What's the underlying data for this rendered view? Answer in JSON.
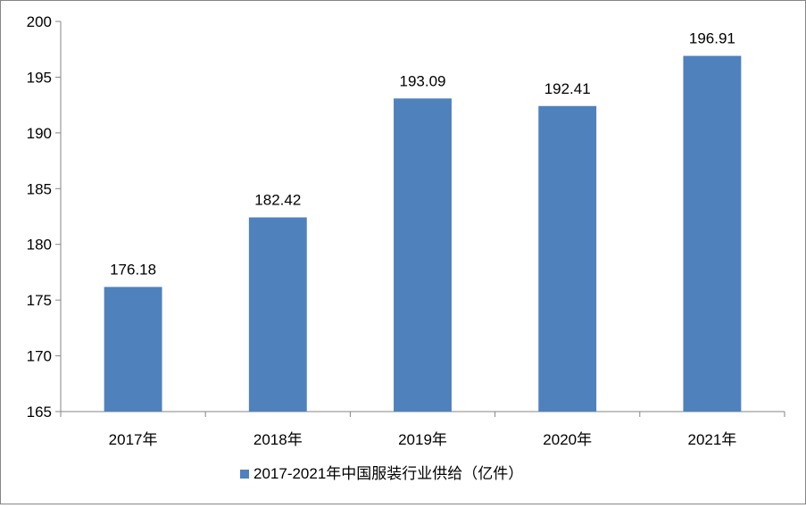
{
  "chart_data": {
    "type": "bar",
    "categories": [
      "2017年",
      "2018年",
      "2019年",
      "2020年",
      "2021年"
    ],
    "series": [
      {
        "name": "2017-2021年中国服装行业供给（亿件）",
        "values": [
          176.18,
          182.42,
          193.09,
          192.41,
          196.91
        ]
      }
    ],
    "data_labels": [
      "176.18",
      "182.42",
      "193.09",
      "192.41",
      "196.91"
    ],
    "ylim": [
      165,
      200
    ],
    "yticks": [
      165,
      170,
      175,
      180,
      185,
      190,
      195,
      200
    ],
    "ytick_labels": [
      "165",
      "170",
      "175",
      "180",
      "185",
      "190",
      "195",
      "200"
    ],
    "grid": false,
    "legend": "bottom",
    "colors": {
      "bar": "#4f81bd",
      "axis": "#868686",
      "text": "#000000"
    }
  }
}
